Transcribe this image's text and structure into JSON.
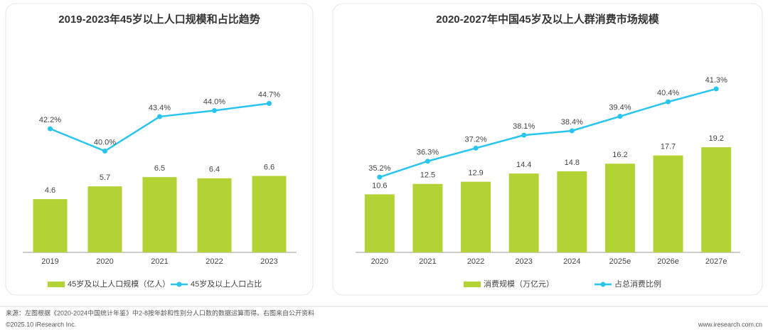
{
  "chart_data": [
    {
      "type": "bar",
      "title": "2019-2023年45岁以上人口规模和占比趋势",
      "categories": [
        "2019",
        "2020",
        "2021",
        "2022",
        "2023"
      ],
      "series": [
        {
          "name": "45岁及以上人口规模（亿人）",
          "color": "#b2d235",
          "values": [
            4.6,
            5.7,
            6.5,
            6.4,
            6.6
          ]
        },
        {
          "name": "45岁及以上人口占比",
          "color": "#29c5f0",
          "type": "line",
          "axis": "y2",
          "values": [
            42.2,
            40.0,
            43.4,
            44.0,
            44.7
          ],
          "value_labels": [
            "42.2%",
            "40.0%",
            "43.4%",
            "44.0%",
            "44.7%"
          ]
        }
      ],
      "ylim": [
        0,
        17.5
      ],
      "y2lim": [
        30,
        50
      ]
    },
    {
      "type": "bar",
      "title": "2020-2027年中国45岁及以上人群消费市场规模",
      "categories": [
        "2020",
        "2021",
        "2022",
        "2023",
        "2024",
        "2025e",
        "2026e",
        "2027e"
      ],
      "series": [
        {
          "name": "消费规模（万亿元）",
          "color": "#b2d235",
          "values": [
            10.6,
            12.5,
            12.9,
            14.4,
            14.8,
            16.2,
            17.7,
            19.2
          ]
        },
        {
          "name": "占总消费比例",
          "color": "#29c5f0",
          "type": "line",
          "axis": "y2",
          "values": [
            35.2,
            36.3,
            37.2,
            38.1,
            38.4,
            39.4,
            40.4,
            41.3
          ],
          "value_labels": [
            "35.2%",
            "36.3%",
            "37.2%",
            "38.1%",
            "38.4%",
            "39.4%",
            "40.4%",
            "41.3%"
          ]
        }
      ],
      "ylim": [
        0,
        37
      ],
      "y2lim": [
        30,
        44
      ]
    }
  ],
  "footer": {
    "source": "来源：左图根据《2020-2024中国统计年鉴》中2-8按年龄和性别分人口数的数据运算而得。右图来自公开资料",
    "copyright": "©2025.10 iResearch Inc.",
    "website": "www.iresearch.com.cn"
  }
}
